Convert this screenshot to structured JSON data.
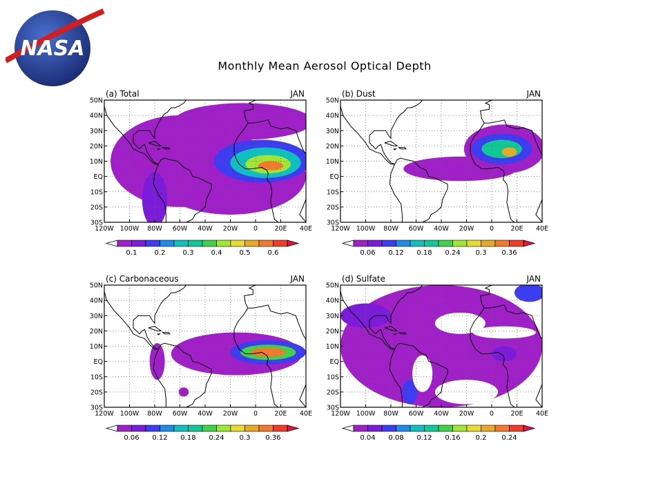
{
  "title": "Monthly Mean Aerosol Optical Depth",
  "logo_text": "NASA",
  "colors": [
    "#a020c8",
    "#7a1cd8",
    "#3c3cf0",
    "#1e8ce6",
    "#10c0c0",
    "#10c896",
    "#40d24a",
    "#a0e632",
    "#e6dc32",
    "#e6aa28",
    "#f07a2e",
    "#f03c28",
    "#e6143c"
  ],
  "chart_data": [
    {
      "type": "heatmap",
      "panel_label": "(a) Total",
      "month": "JAN",
      "x_ticks": [
        "120W",
        "100W",
        "80W",
        "60W",
        "40W",
        "20W",
        "0",
        "20E",
        "40E"
      ],
      "y_ticks": [
        "30S",
        "20S",
        "10S",
        "EQ",
        "10N",
        "20N",
        "30N",
        "40N",
        "50N"
      ],
      "xlim": [
        -120,
        40
      ],
      "ylim": [
        -30,
        50
      ],
      "colorbar_ticks": [
        "0.1",
        "0.2",
        "0.3",
        "0.4",
        "0.5",
        "0.6"
      ],
      "blobs": [
        {
          "lon": -60,
          "lat": 10,
          "rx": 55,
          "ry": 30,
          "level": 0
        },
        {
          "lon": -40,
          "lat": 2,
          "rx": 60,
          "ry": 18,
          "level": 0
        },
        {
          "lon": -20,
          "lat": 0,
          "rx": 60,
          "ry": 25,
          "level": 0
        },
        {
          "lon": -10,
          "lat": 36,
          "rx": 55,
          "ry": 12,
          "level": 0
        },
        {
          "lon": -80,
          "lat": -15,
          "rx": 10,
          "ry": 18,
          "level": 1
        },
        {
          "lon": 5,
          "lat": 10,
          "rx": 38,
          "ry": 14,
          "level": 2
        },
        {
          "lon": 8,
          "lat": 9,
          "rx": 28,
          "ry": 10,
          "level": 4
        },
        {
          "lon": 10,
          "lat": 8,
          "rx": 18,
          "ry": 6,
          "level": 7
        },
        {
          "lon": 12,
          "lat": 7,
          "rx": 10,
          "ry": 3,
          "level": 10
        }
      ]
    },
    {
      "type": "heatmap",
      "panel_label": "(b) Dust",
      "month": "JAN",
      "x_ticks": [
        "120W",
        "100W",
        "80W",
        "60W",
        "40W",
        "20W",
        "0",
        "20E",
        "40E"
      ],
      "y_ticks": [
        "30S",
        "20S",
        "10S",
        "EQ",
        "10N",
        "20N",
        "30N",
        "40N",
        "50N"
      ],
      "xlim": [
        -120,
        40
      ],
      "ylim": [
        -30,
        50
      ],
      "colorbar_ticks": [
        "0.06",
        "0.12",
        "0.18",
        "0.24",
        "0.3",
        "0.36"
      ],
      "blobs": [
        {
          "lon": -25,
          "lat": 5,
          "rx": 45,
          "ry": 8,
          "level": 0
        },
        {
          "lon": 10,
          "lat": 18,
          "rx": 32,
          "ry": 16,
          "level": 0
        },
        {
          "lon": 8,
          "lat": 18,
          "rx": 24,
          "ry": 10,
          "level": 2
        },
        {
          "lon": 8,
          "lat": 18,
          "rx": 16,
          "ry": 6,
          "level": 5
        },
        {
          "lon": 14,
          "lat": 16,
          "rx": 6,
          "ry": 3,
          "level": 9
        }
      ]
    },
    {
      "type": "heatmap",
      "panel_label": "(c) Carbonaceous",
      "month": "JAN",
      "x_ticks": [
        "120W",
        "100W",
        "80W",
        "60W",
        "40W",
        "20W",
        "0",
        "20E",
        "40E"
      ],
      "y_ticks": [
        "30S",
        "20S",
        "10S",
        "EQ",
        "10N",
        "20N",
        "30N",
        "40N",
        "50N"
      ],
      "xlim": [
        -120,
        40
      ],
      "ylim": [
        -30,
        50
      ],
      "colorbar_ticks": [
        "0.06",
        "0.12",
        "0.18",
        "0.24",
        "0.3",
        "0.36"
      ],
      "blobs": [
        {
          "lon": -15,
          "lat": 5,
          "rx": 52,
          "ry": 14,
          "level": 0
        },
        {
          "lon": -78,
          "lat": 0,
          "rx": 6,
          "ry": 12,
          "level": 0
        },
        {
          "lon": -57,
          "lat": -20,
          "rx": 4,
          "ry": 3,
          "level": 0
        },
        {
          "lon": 10,
          "lat": 6,
          "rx": 30,
          "ry": 8,
          "level": 2
        },
        {
          "lon": 10,
          "lat": 6,
          "rx": 22,
          "ry": 5,
          "level": 6
        },
        {
          "lon": 10,
          "lat": 6,
          "rx": 14,
          "ry": 3,
          "level": 10
        }
      ]
    },
    {
      "type": "heatmap",
      "panel_label": "(d) Sulfate",
      "month": "JAN",
      "x_ticks": [
        "120W",
        "100W",
        "80W",
        "60W",
        "40W",
        "20W",
        "0",
        "20E",
        "40E"
      ],
      "y_ticks": [
        "30S",
        "20S",
        "10S",
        "EQ",
        "10N",
        "20N",
        "30N",
        "40N",
        "50N"
      ],
      "xlim": [
        -120,
        40
      ],
      "ylim": [
        -30,
        50
      ],
      "colorbar_ticks": [
        "0.04",
        "0.08",
        "0.12",
        "0.16",
        "0.2",
        "0.24"
      ],
      "blobs": [
        {
          "lon": -40,
          "lat": 10,
          "rx": 80,
          "ry": 40,
          "level": 0
        },
        {
          "lon": -100,
          "lat": 30,
          "rx": 20,
          "ry": 8,
          "level": 1
        },
        {
          "lon": -65,
          "lat": -20,
          "rx": 6,
          "ry": 8,
          "level": 2
        },
        {
          "lon": 30,
          "lat": 45,
          "rx": 12,
          "ry": 6,
          "level": 2
        },
        {
          "lon": 10,
          "lat": 5,
          "rx": 10,
          "ry": 5,
          "level": 1
        }
      ],
      "holes": [
        {
          "lon": -25,
          "lat": 25,
          "rx": 20,
          "ry": 7
        },
        {
          "lon": 10,
          "lat": 19,
          "rx": 25,
          "ry": 4
        },
        {
          "lon": -55,
          "lat": -8,
          "rx": 8,
          "ry": 12
        },
        {
          "lon": -20,
          "lat": -20,
          "rx": 25,
          "ry": 8
        }
      ]
    }
  ]
}
